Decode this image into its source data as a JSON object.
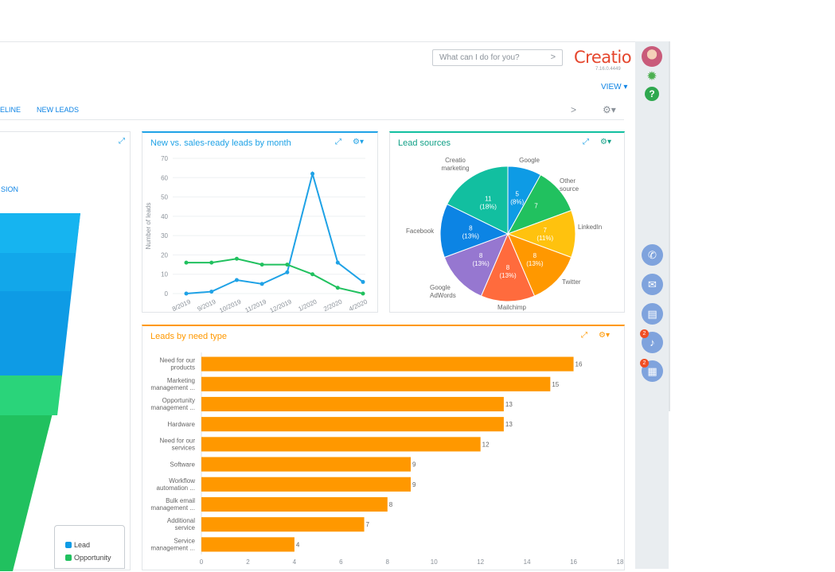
{
  "header": {
    "search_placeholder": "What can I do for you?",
    "logo": "Creatio",
    "version": "7.16.0.4449",
    "view_label": "VIEW ▾"
  },
  "tabs": [
    {
      "label": "ELINE"
    },
    {
      "label": "NEW LEADS"
    }
  ],
  "funnel_panel": {
    "partial_label": "SION",
    "legend": [
      {
        "label": "Lead",
        "color": "#0e9be5"
      },
      {
        "label": "Opportunity",
        "color": "#21c15f"
      }
    ]
  },
  "line_panel": {
    "title": "New vs. sales-ready leads by month"
  },
  "pie_panel": {
    "title": "Lead sources"
  },
  "bar_panel": {
    "title": "Leads by need type"
  },
  "rail": {
    "notification_badge": "2",
    "feed_badge": "2"
  },
  "chart_data": [
    {
      "type": "line",
      "title": "New vs. sales-ready leads by month",
      "ylabel": "Number of leads",
      "x": [
        "8/2019",
        "9/2019",
        "10/2019",
        "11/2019",
        "12/2019",
        "1/2020",
        "2/2020",
        "4/2020"
      ],
      "ylim": [
        0,
        70
      ],
      "yticks": [
        0,
        10,
        20,
        30,
        40,
        50,
        60,
        70
      ],
      "series": [
        {
          "color": "#1fa2e6",
          "values": [
            0,
            1,
            7,
            5,
            11,
            62,
            16,
            6
          ]
        },
        {
          "color": "#21c15f",
          "values": [
            16,
            16,
            18,
            15,
            15,
            10,
            3,
            0
          ]
        }
      ]
    },
    {
      "type": "pie",
      "title": "Lead sources",
      "slices": [
        {
          "label": "Google",
          "value": 5,
          "pct": "(8%)",
          "color": "#0e9be5"
        },
        {
          "label": "Other source",
          "value": 7,
          "pct": "",
          "color": "#21c15f"
        },
        {
          "label": "LinkedIn",
          "value": 7,
          "pct": "(11%)",
          "color": "#ffc20e"
        },
        {
          "label": "Twitter",
          "value": 8,
          "pct": "(13%)",
          "color": "#ff9800"
        },
        {
          "label": "Mailchimp",
          "value": 8,
          "pct": "(13%)",
          "color": "#ff6b3d"
        },
        {
          "label": "Google AdWords",
          "value": 8,
          "pct": "(13%)",
          "color": "#9677d0"
        },
        {
          "label": "Facebook",
          "value": 8,
          "pct": "(13%)",
          "color": "#0c84e4"
        },
        {
          "label": "Creatio marketing",
          "value": 11,
          "pct": "(18%)",
          "color": "#12bfa0"
        }
      ]
    },
    {
      "type": "bar",
      "title": "Leads by need type",
      "orientation": "horizontal",
      "color": "#ff9800",
      "categories": [
        [
          "Need for our",
          "products"
        ],
        [
          "Marketing",
          "management ..."
        ],
        [
          "Opportunity",
          "management ..."
        ],
        [
          "Hardware"
        ],
        [
          "Need for our",
          "services"
        ],
        [
          "Software"
        ],
        [
          "Workflow",
          "automation ..."
        ],
        [
          "Bulk email",
          "management ..."
        ],
        [
          "Additional",
          "service"
        ],
        [
          "Service",
          "management ..."
        ]
      ],
      "values": [
        16,
        15,
        13,
        13,
        12,
        9,
        9,
        8,
        7,
        4
      ],
      "xlim": [
        0,
        18
      ],
      "xticks": [
        0,
        2,
        4,
        6,
        8,
        10,
        12,
        14,
        16,
        18
      ]
    }
  ]
}
